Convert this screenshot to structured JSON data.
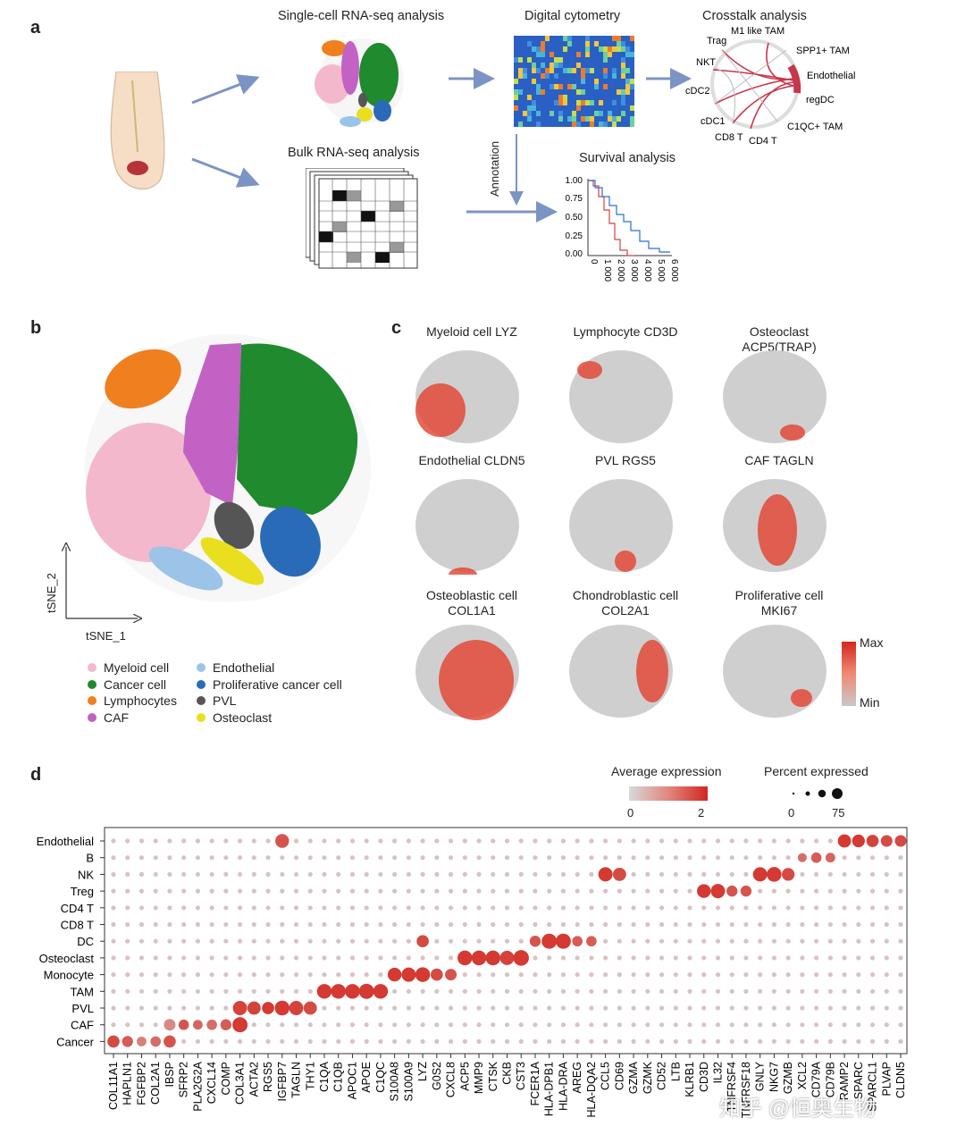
{
  "panel_labels": {
    "a": "a",
    "b": "b",
    "c": "c",
    "d": "d"
  },
  "panel_a": {
    "scrna_title": "Single-cell RNA-seq analysis",
    "bulk_title": "Bulk RNA-seq analysis",
    "cytometry_title": "Digital cytometry",
    "crosstalk_title": "Crosstalk analysis",
    "annotation_label": "Annotation",
    "survival_title": "Survival analysis",
    "survival_y_ticks": [
      "1.00",
      "0.75",
      "0.50",
      "0.25",
      "0.00"
    ],
    "survival_x_ticks": [
      "0",
      "1 000",
      "2 000",
      "3 000",
      "4 000",
      "5 000",
      "6 000"
    ],
    "crosstalk_nodes": [
      "M1 like TAM",
      "SPP1+ TAM",
      "Endothelial",
      "regDC",
      "C1QC+ TAM",
      "CD4 T",
      "CD8 T",
      "cDC1",
      "cDC2",
      "NKT",
      "Trag"
    ]
  },
  "panel_b": {
    "x_axis": "tSNE_1",
    "y_axis": "tSNE_2",
    "legend_left": [
      {
        "label": "Myeloid cell",
        "color": "#f4b8cc"
      },
      {
        "label": "Cancer cell",
        "color": "#1f8a2e"
      },
      {
        "label": "Lymphocytes",
        "color": "#f07f1e"
      },
      {
        "label": "CAF",
        "color": "#c162c4"
      }
    ],
    "legend_right": [
      {
        "label": "Endothelial",
        "color": "#9cc3e8"
      },
      {
        "label": "Proliferative cancer cell",
        "color": "#2a6bb8"
      },
      {
        "label": "PVL",
        "color": "#555555"
      },
      {
        "label": "Osteoclast",
        "color": "#e9df1e"
      }
    ]
  },
  "panel_c": {
    "maps": [
      {
        "title": "Myeloid cell LYZ"
      },
      {
        "title": "Lymphocyte CD3D"
      },
      {
        "title": "Osteoclast ACP5(TRAP)"
      },
      {
        "title": "Endothelial CLDN5"
      },
      {
        "title": "PVL RGS5"
      },
      {
        "title": "CAF TAGLN"
      },
      {
        "title": "Osteoblastic cell\nCOL1A1"
      },
      {
        "title": "Chondroblastic cell\nCOL2A1"
      },
      {
        "title": "Proliferative cell\nMKI67"
      }
    ],
    "scale_max": "Max",
    "scale_min": "Min"
  },
  "chart_data": {
    "type": "dotplot",
    "title": "",
    "legend_expression_title": "Average expression",
    "legend_expression_range": [
      "0",
      "2"
    ],
    "legend_percent_title": "Percent expressed",
    "legend_percent_ticks": [
      "0",
      "75"
    ],
    "rows": [
      "Endothelial",
      "B",
      "NK",
      "Treg",
      "CD4 T",
      "CD8 T",
      "DC",
      "Osteoclast",
      "Monocyte",
      "TAM",
      "PVL",
      "CAF",
      "Cancer"
    ],
    "genes": [
      "COL11A1",
      "HAPLN1",
      "FGFBP2",
      "COL2A1",
      "IBSP",
      "SFRP2",
      "PLA2G2A",
      "CXCL14",
      "COMP",
      "COL3A1",
      "ACTA2",
      "RGS5",
      "IGFBP7",
      "TAGLN",
      "THY1",
      "C1QA",
      "C1QB",
      "APOC1",
      "APOE",
      "C1QC",
      "S100A8",
      "S100A9",
      "LYZ",
      "G0S2",
      "CXCL8",
      "ACP5",
      "MMP9",
      "CTSK",
      "CKB",
      "CST3",
      "FCER1A",
      "HLA-DPB1",
      "HLA-DRA",
      "AREG",
      "HLA-DQA2",
      "CCL5",
      "CD69",
      "GZMA",
      "GZMK",
      "CD52",
      "LTB",
      "KLRB1",
      "CD3D",
      "IL32",
      "TNFRSF4",
      "TNFRSF18",
      "GNLY",
      "NKG7",
      "GZMB",
      "XCL2",
      "CD79A",
      "CD79B",
      "RAMP2",
      "SPARC",
      "SPARCL1",
      "PLVAP",
      "CLDN5"
    ],
    "points": [
      [
        "Cancer",
        "COL11A1",
        1.6,
        55
      ],
      [
        "Cancer",
        "HAPLN1",
        1.4,
        45
      ],
      [
        "Cancer",
        "FGFBP2",
        1.0,
        35
      ],
      [
        "Cancer",
        "COL2A1",
        1.2,
        40
      ],
      [
        "Cancer",
        "IBSP",
        1.5,
        55
      ],
      [
        "CAF",
        "COL3A1",
        1.8,
        85
      ],
      [
        "CAF",
        "IBSP",
        0.9,
        50
      ],
      [
        "CAF",
        "SFRP2",
        1.5,
        40
      ],
      [
        "CAF",
        "PLA2G2A",
        1.3,
        35
      ],
      [
        "CAF",
        "CXCL14",
        1.2,
        40
      ],
      [
        "CAF",
        "COMP",
        1.4,
        45
      ],
      [
        "PVL",
        "COL3A1",
        1.7,
        75
      ],
      [
        "PVL",
        "ACTA2",
        1.7,
        65
      ],
      [
        "PVL",
        "RGS5",
        1.8,
        55
      ],
      [
        "PVL",
        "IGFBP7",
        1.8,
        80
      ],
      [
        "PVL",
        "TAGLN",
        1.7,
        75
      ],
      [
        "PVL",
        "THY1",
        1.6,
        65
      ],
      [
        "TAM",
        "C1QA",
        1.8,
        80
      ],
      [
        "TAM",
        "C1QB",
        1.8,
        80
      ],
      [
        "TAM",
        "APOC1",
        1.8,
        80
      ],
      [
        "TAM",
        "APOE",
        1.8,
        85
      ],
      [
        "TAM",
        "C1QC",
        1.8,
        80
      ],
      [
        "Monocyte",
        "S100A8",
        1.8,
        70
      ],
      [
        "Monocyte",
        "S100A9",
        1.8,
        75
      ],
      [
        "Monocyte",
        "LYZ",
        1.8,
        80
      ],
      [
        "Monocyte",
        "G0S2",
        1.6,
        55
      ],
      [
        "Monocyte",
        "CXCL8",
        1.5,
        50
      ],
      [
        "Osteoclast",
        "ACP5",
        1.8,
        80
      ],
      [
        "Osteoclast",
        "MMP9",
        1.8,
        80
      ],
      [
        "Osteoclast",
        "CTSK",
        1.8,
        80
      ],
      [
        "Osteoclast",
        "CKB",
        1.7,
        75
      ],
      [
        "Osteoclast",
        "CST3",
        1.8,
        90
      ],
      [
        "DC",
        "LYZ",
        1.6,
        55
      ],
      [
        "DC",
        "FCER1A",
        1.5,
        45
      ],
      [
        "DC",
        "HLA-DPB1",
        1.8,
        85
      ],
      [
        "DC",
        "HLA-DRA",
        1.8,
        85
      ],
      [
        "DC",
        "AREG",
        1.4,
        40
      ],
      [
        "DC",
        "HLA-DQA2",
        1.4,
        40
      ],
      [
        "NK",
        "CCL5",
        1.8,
        75
      ],
      [
        "NK",
        "CD69",
        1.6,
        65
      ],
      [
        "NK",
        "GNLY",
        1.8,
        75
      ],
      [
        "NK",
        "NKG7",
        1.8,
        80
      ],
      [
        "NK",
        "GZMB",
        1.6,
        60
      ],
      [
        "Treg",
        "CD3D",
        1.8,
        70
      ],
      [
        "Treg",
        "IL32",
        1.8,
        75
      ],
      [
        "Treg",
        "TNFRSF4",
        1.5,
        45
      ],
      [
        "Treg",
        "TNFRSF18",
        1.5,
        45
      ],
      [
        "B",
        "XCL2",
        1.2,
        30
      ],
      [
        "B",
        "CD79A",
        1.4,
        40
      ],
      [
        "B",
        "CD79B",
        1.3,
        35
      ],
      [
        "Endothelial",
        "IGFBP7",
        1.5,
        70
      ],
      [
        "Endothelial",
        "RAMP2",
        1.8,
        65
      ],
      [
        "Endothelial",
        "SPARC",
        1.8,
        60
      ],
      [
        "Endothelial",
        "SPARCL1",
        1.7,
        55
      ],
      [
        "Endothelial",
        "PLVAP",
        1.6,
        50
      ],
      [
        "Endothelial",
        "CLDN5",
        1.6,
        50
      ]
    ]
  },
  "watermark": "知乎 @恒奥生物"
}
